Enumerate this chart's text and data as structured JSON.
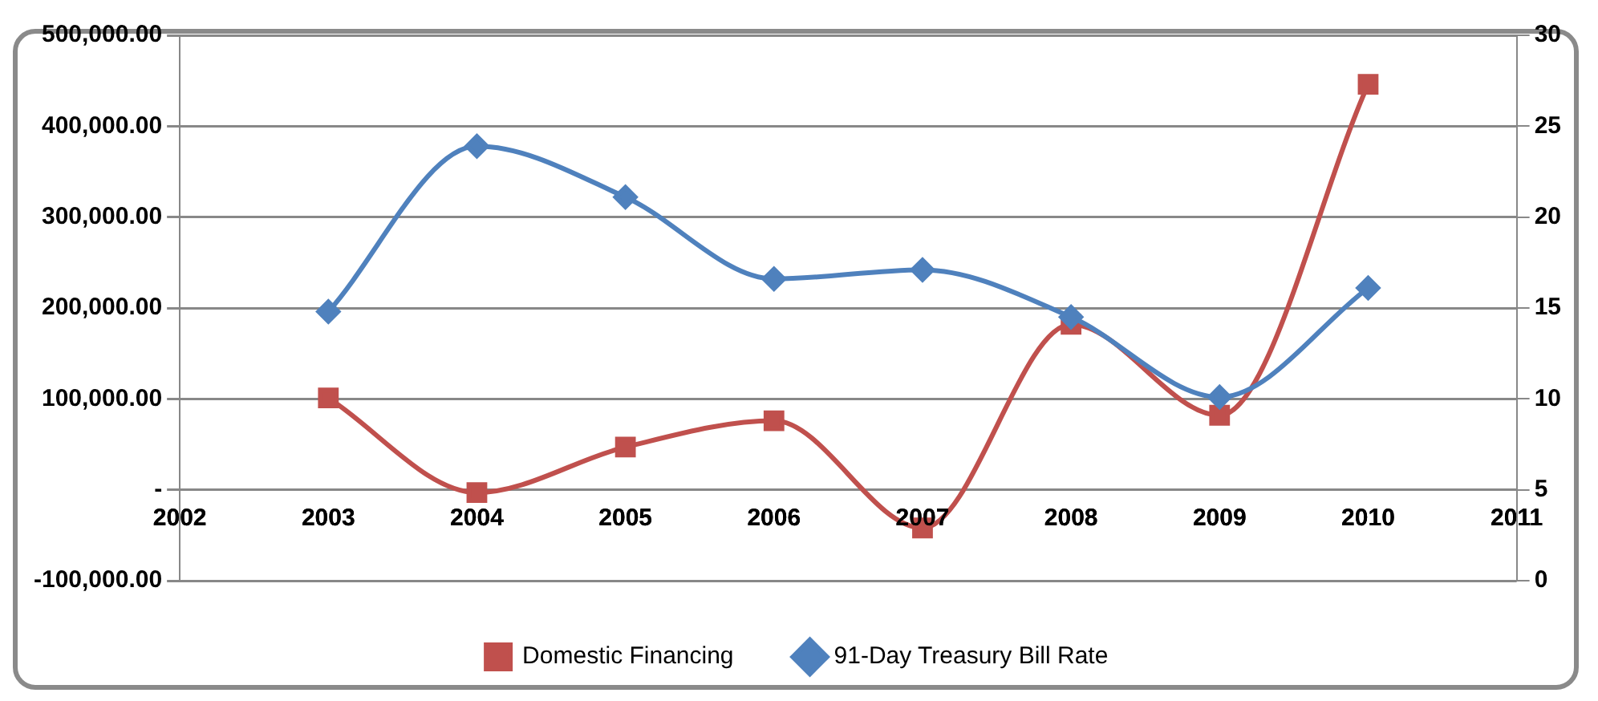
{
  "chart_data": {
    "type": "line",
    "x": [
      2003,
      2004,
      2005,
      2006,
      2007,
      2008,
      2009,
      2010
    ],
    "series": [
      {
        "name": "Domestic Financing",
        "color": "#c0504d",
        "marker": "square",
        "values": [
          101000,
          -3000,
          47000,
          76000,
          -42000,
          182000,
          82000,
          446000
        ]
      },
      {
        "name": "91-Day Treasury Bill Rate",
        "color": "#4f81bd",
        "marker": "diamond",
        "axis": "y2",
        "values": [
          14.8,
          23.9,
          21.1,
          16.6,
          17.1,
          14.5,
          10.1,
          16.1
        ]
      }
    ],
    "xlim": [
      2002,
      2011
    ],
    "xticks": [
      2002,
      2003,
      2004,
      2005,
      2006,
      2007,
      2008,
      2009,
      2010,
      2011
    ],
    "ylim": [
      -100000,
      500000
    ],
    "yticks": [
      {
        "value": -100000,
        "label": "-100,000.00"
      },
      {
        "value": 0,
        "label": "-"
      },
      {
        "value": 100000,
        "label": "100,000.00"
      },
      {
        "value": 200000,
        "label": "200,000.00"
      },
      {
        "value": 300000,
        "label": "300,000.00"
      },
      {
        "value": 400000,
        "label": "400,000.00"
      },
      {
        "value": 500000,
        "label": "500,000.00"
      }
    ],
    "y2lim": [
      0,
      30
    ],
    "y2ticks": [
      0,
      5,
      10,
      15,
      20,
      25,
      30
    ],
    "grid": "y",
    "legend": "bottom",
    "line_style": "solid"
  }
}
